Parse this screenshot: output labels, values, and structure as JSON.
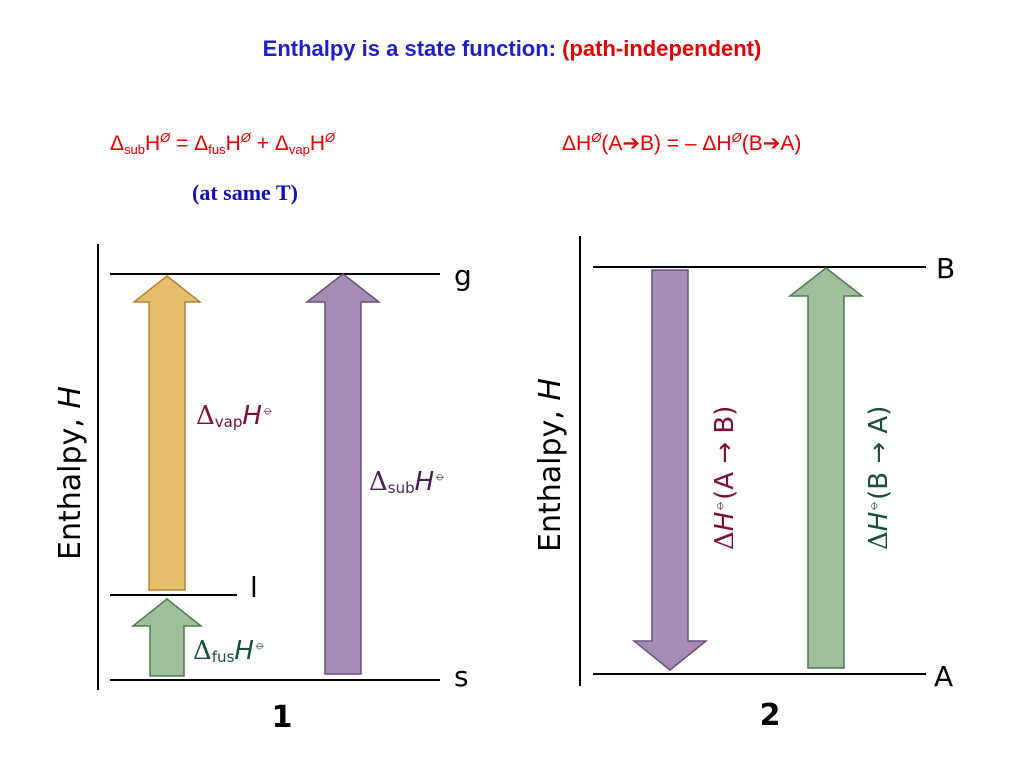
{
  "title": {
    "part1": "Enthalpy is a state function:",
    "part2": "(path-independent)"
  },
  "equations": {
    "left": {
      "delta1": "Δ",
      "sub1": "sub",
      "h1": "H",
      "sup1": "Ø",
      "eq": " = ",
      "delta2": "Δ",
      "sub2": "fus",
      "h2": "H",
      "sup2": "Ø",
      "plus": " + ",
      "delta3": "Δ",
      "sub3": "vap",
      "h3": "H",
      "sup3": "Ø"
    },
    "note": "(at same T)",
    "right": {
      "part1": "ΔH",
      "sup1": "Ø",
      "part2": "(A",
      "arrow1": "➔",
      "part3": "B) = – ",
      "part4": "ΔH",
      "sup2": "Ø",
      "part5": "(B",
      "arrow2": "➔",
      "part6": "A)"
    }
  },
  "diagram1": {
    "axis_label": "Enthalpy, ",
    "axis_var": "H",
    "levels": {
      "g": "g",
      "l": "l",
      "s": "s"
    },
    "arrows": {
      "vap": {
        "delta": "Δ",
        "sub": "vap",
        "sym": "H",
        "std": "⦵"
      },
      "sub": {
        "delta": "Δ",
        "sub": "sub",
        "sym": "H",
        "std": "⦵"
      },
      "fus": {
        "delta": "Δ",
        "sub": "fus",
        "sym": "H",
        "std": "⦵"
      }
    },
    "number": "1"
  },
  "diagram2": {
    "axis_label": "Enthalpy, ",
    "axis_var": "H",
    "levels": {
      "B": "B",
      "A": "A"
    },
    "arrows": {
      "ab": {
        "delta": "Δ",
        "sym": "H",
        "std": "⦵",
        "rest": "(A → B)"
      },
      "ba": {
        "delta": "Δ",
        "sym": "H",
        "std": "⦵",
        "rest": "(B → A)"
      }
    },
    "number": "2"
  },
  "colors": {
    "title_blue": "#1f1fc8",
    "red": "#e00000",
    "vap_fill": "#e6bd6b",
    "vap_stroke": "#b0843a",
    "purple_fill": "#a48db3",
    "purple_stroke": "#6b4e7e",
    "green_fill": "#9dbf9a",
    "green_stroke": "#4f7a52",
    "label_maroon": "#7a1030",
    "label_darkgreen": "#1a4d3a",
    "label_darkpurple": "#4a1f4f"
  }
}
